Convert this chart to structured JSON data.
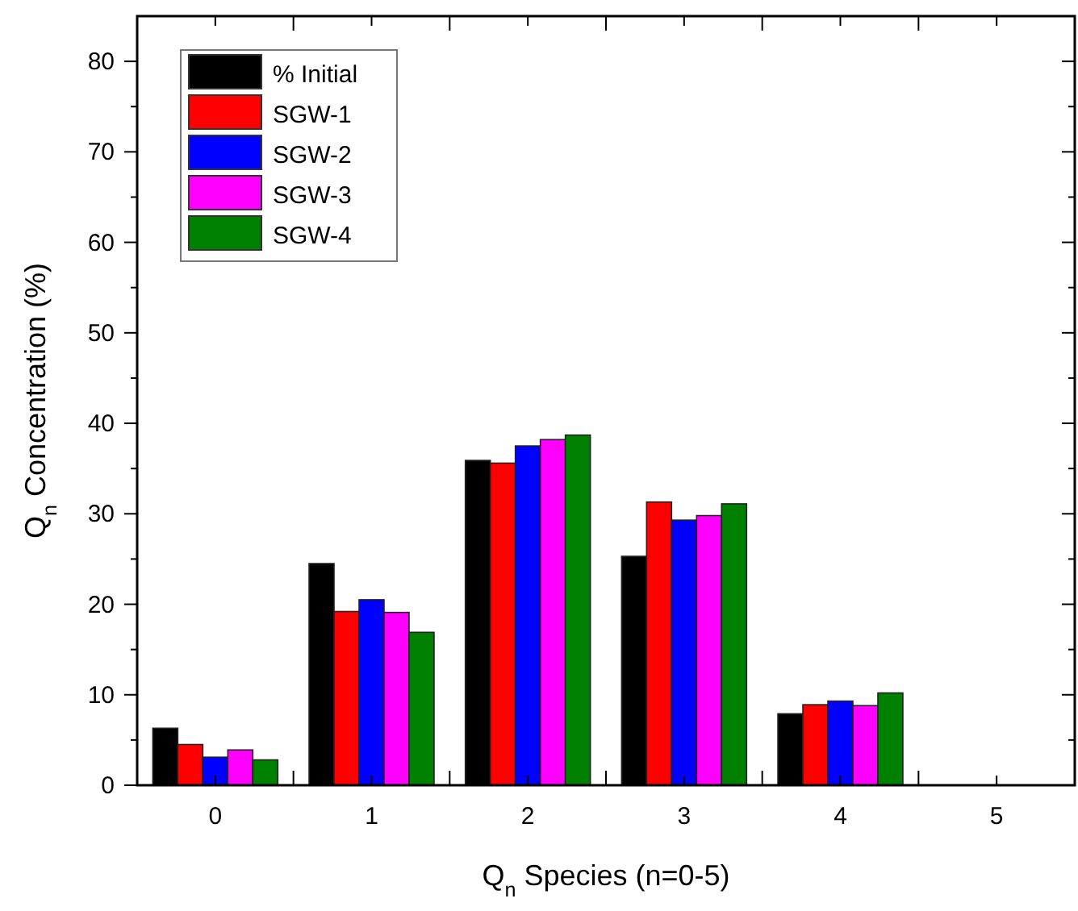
{
  "chart_data": {
    "type": "bar",
    "xlabel": "Q$_{n}$ Species (n=0-5)",
    "ylabel": "Q$_{n}$ Concentration (%)",
    "categories": [
      "0",
      "1",
      "2",
      "3",
      "4",
      "5"
    ],
    "series": [
      {
        "name": "% Initial",
        "color": "#000000",
        "values": [
          6.3,
          24.5,
          35.9,
          25.3,
          7.9,
          0
        ]
      },
      {
        "name": "SGW-1",
        "color": "#ff0000",
        "values": [
          4.5,
          19.2,
          35.6,
          31.3,
          8.9,
          0
        ]
      },
      {
        "name": "SGW-2",
        "color": "#0000ff",
        "values": [
          3.1,
          20.5,
          37.5,
          29.3,
          9.3,
          0
        ]
      },
      {
        "name": "SGW-3",
        "color": "#ff00ff",
        "values": [
          3.9,
          19.1,
          38.2,
          29.8,
          8.8,
          0
        ]
      },
      {
        "name": "SGW-4",
        "color": "#008000",
        "values": [
          2.8,
          16.9,
          38.7,
          31.1,
          10.2,
          0
        ]
      }
    ],
    "ylim": [
      0,
      85
    ],
    "yticks": [
      0,
      10,
      20,
      30,
      40,
      50,
      60,
      70,
      80
    ],
    "legend": "top left"
  }
}
